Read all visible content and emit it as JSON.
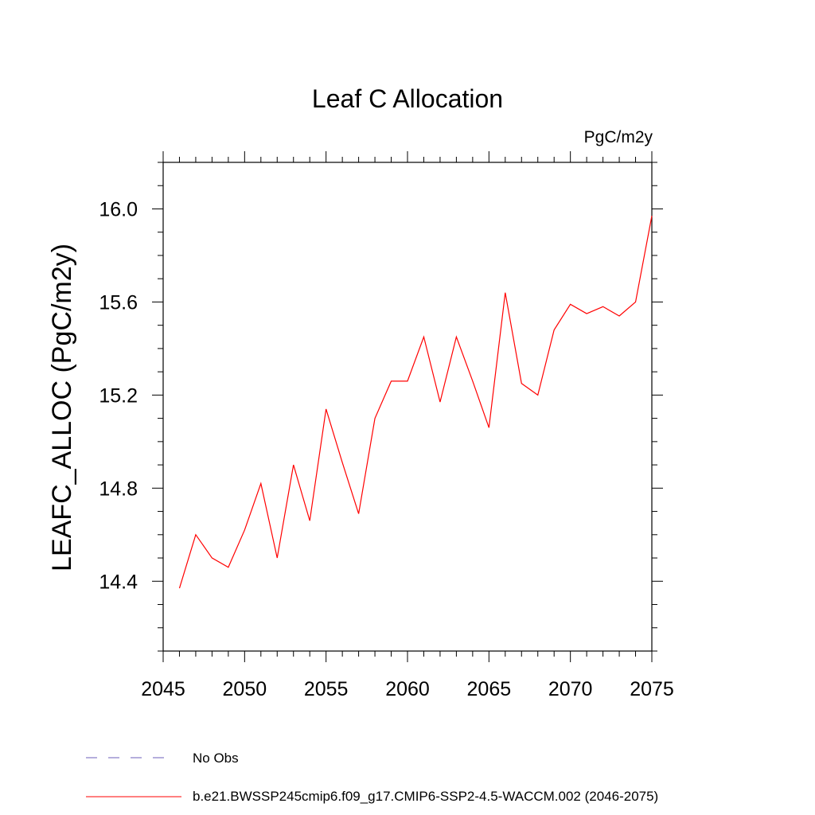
{
  "chart_data": {
    "type": "line",
    "title": "Leaf C Allocation",
    "units_label": "PgC/m2y",
    "xlabel": "",
    "ylabel": "LEAFC_ALLOC  (PgC/m2y)",
    "xlim": [
      2045,
      2075
    ],
    "ylim": [
      14.1,
      16.2
    ],
    "xticks": [
      2045,
      2050,
      2055,
      2060,
      2065,
      2070,
      2075
    ],
    "xtick_labels": [
      "2045",
      "2050",
      "2055",
      "2060",
      "2065",
      "2070",
      "2075"
    ],
    "yticks": [
      14.4,
      14.8,
      15.2,
      15.6,
      16.0
    ],
    "ytick_labels": [
      "14.4",
      "14.8",
      "15.2",
      "15.6",
      "16.0"
    ],
    "grid": false,
    "legend_position": "bottom-left",
    "series": [
      {
        "name": "b.e21.BWSSP245cmip6.f09_g17.CMIP6-SSP2-4.5-WACCM.002 (2046-2075)",
        "color": "#ff0000",
        "style": "solid",
        "x": [
          2046,
          2047,
          2048,
          2049,
          2050,
          2051,
          2052,
          2053,
          2054,
          2055,
          2056,
          2057,
          2058,
          2059,
          2060,
          2061,
          2062,
          2063,
          2064,
          2065,
          2066,
          2067,
          2068,
          2069,
          2070,
          2071,
          2072,
          2073,
          2074,
          2075
        ],
        "values": [
          14.37,
          14.6,
          14.5,
          14.46,
          14.62,
          14.82,
          14.5,
          14.9,
          14.66,
          15.14,
          14.91,
          14.69,
          15.1,
          15.26,
          15.26,
          15.45,
          15.17,
          15.45,
          15.26,
          15.06,
          15.64,
          15.25,
          15.2,
          15.48,
          15.59,
          15.55,
          15.58,
          15.54,
          15.6,
          15.97
        ]
      }
    ],
    "legend": [
      {
        "label": "No Obs",
        "color": "#6b5fb8",
        "style": "dashed"
      },
      {
        "label": "b.e21.BWSSP245cmip6.f09_g17.CMIP6-SSP2-4.5-WACCM.002 (2046-2075)",
        "color": "#ff0000",
        "style": "solid"
      }
    ]
  }
}
